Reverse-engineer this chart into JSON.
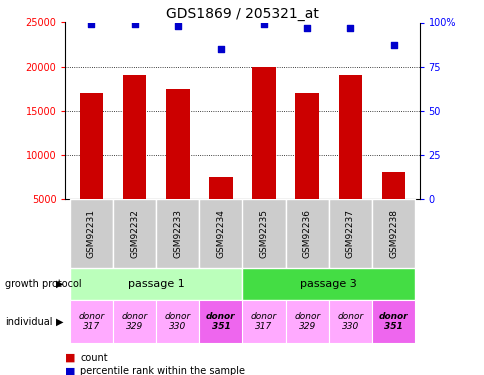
{
  "title": "GDS1869 / 205321_at",
  "samples": [
    "GSM92231",
    "GSM92232",
    "GSM92233",
    "GSM92234",
    "GSM92235",
    "GSM92236",
    "GSM92237",
    "GSM92238"
  ],
  "counts": [
    17000,
    19000,
    17500,
    7500,
    20000,
    17000,
    19000,
    8000
  ],
  "percentiles": [
    99,
    99,
    98,
    85,
    99,
    97,
    97,
    87
  ],
  "ylim_left": [
    5000,
    25000
  ],
  "ylim_right": [
    0,
    100
  ],
  "yticks_left": [
    5000,
    10000,
    15000,
    20000,
    25000
  ],
  "yticks_right": [
    0,
    25,
    50,
    75,
    100
  ],
  "bar_color": "#cc0000",
  "dot_color": "#0000cc",
  "passage_1_color": "#bbffbb",
  "passage_3_color": "#44dd44",
  "donor_351_color": "#ee66ee",
  "donor_other_color": "#ffaaff",
  "sample_bg_color": "#cccccc",
  "individuals": [
    "donor\n317",
    "donor\n329",
    "donor\n330",
    "donor\n351",
    "donor\n317",
    "donor\n329",
    "donor\n330",
    "donor\n351"
  ],
  "donor_colors": [
    "#ffaaff",
    "#ffaaff",
    "#ffaaff",
    "#ee66ee",
    "#ffaaff",
    "#ffaaff",
    "#ffaaff",
    "#ee66ee"
  ],
  "donor_bold": [
    false,
    false,
    false,
    true,
    false,
    false,
    false,
    true
  ]
}
